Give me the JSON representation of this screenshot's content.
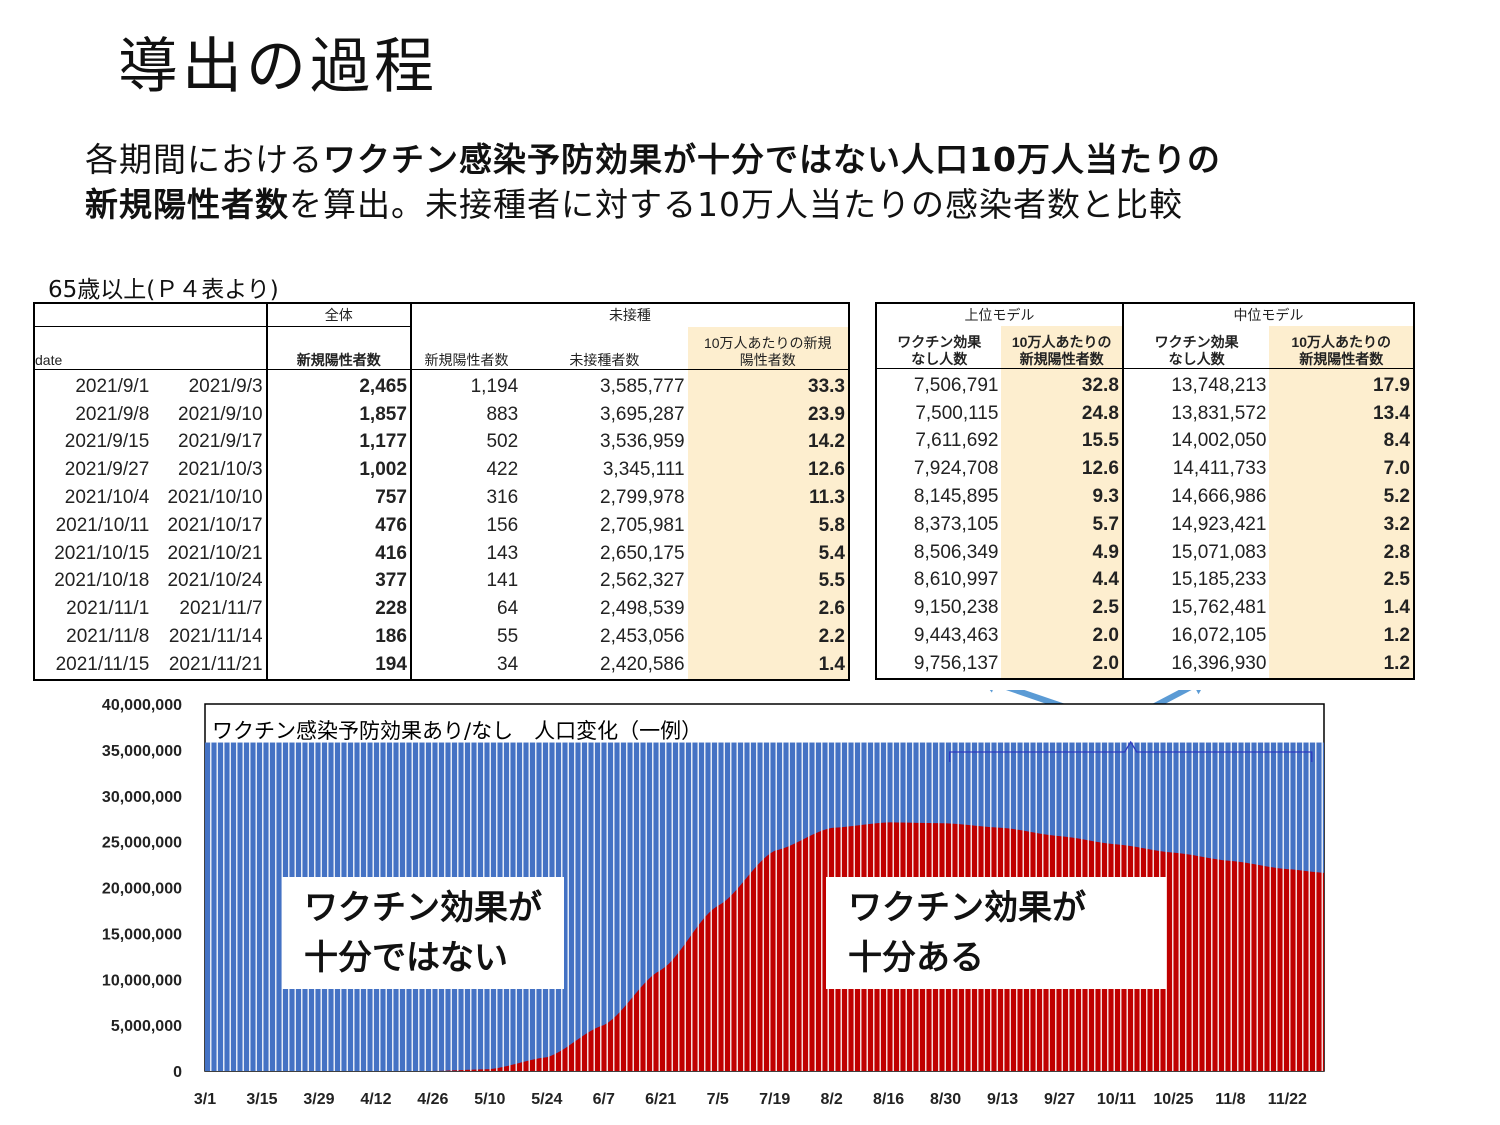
{
  "title": "導出の過程",
  "intro": {
    "line1_normal": "各期間における",
    "line1_bold": "ワクチン感染予防効果が十分ではない人口10万人当たりの",
    "line2_bold": "新規陽性者数",
    "line2_normal": "を算出。未接種者に対する10万人当たりの感染者数と比較"
  },
  "table_caption": "65歳以上(Ｐ４表より)",
  "left_table": {
    "group_headers": {
      "all": "全体",
      "unvaccinated": "未接種"
    },
    "col_headers": {
      "date": "date",
      "new_positive": "新規陽性者数",
      "unvac_new_positive": "新規陽性者数",
      "unvac_count": "未接種者数",
      "per100k_line1": "10万人あたりの新規",
      "per100k_line2": "陽性者数"
    },
    "rows": [
      {
        "start": "2021/9/1",
        "end": "2021/9/3",
        "total": "2,465",
        "unvac_pos": "1,194",
        "unvac_n": "3,585,777",
        "per100k": "33.3"
      },
      {
        "start": "2021/9/8",
        "end": "2021/9/10",
        "total": "1,857",
        "unvac_pos": "883",
        "unvac_n": "3,695,287",
        "per100k": "23.9"
      },
      {
        "start": "2021/9/15",
        "end": "2021/9/17",
        "total": "1,177",
        "unvac_pos": "502",
        "unvac_n": "3,536,959",
        "per100k": "14.2"
      },
      {
        "start": "2021/9/27",
        "end": "2021/10/3",
        "total": "1,002",
        "unvac_pos": "422",
        "unvac_n": "3,345,111",
        "per100k": "12.6"
      },
      {
        "start": "2021/10/4",
        "end": "2021/10/10",
        "total": "757",
        "unvac_pos": "316",
        "unvac_n": "2,799,978",
        "per100k": "11.3"
      },
      {
        "start": "2021/10/11",
        "end": "2021/10/17",
        "total": "476",
        "unvac_pos": "156",
        "unvac_n": "2,705,981",
        "per100k": "5.8"
      },
      {
        "start": "2021/10/15",
        "end": "2021/10/21",
        "total": "416",
        "unvac_pos": "143",
        "unvac_n": "2,650,175",
        "per100k": "5.4"
      },
      {
        "start": "2021/10/18",
        "end": "2021/10/24",
        "total": "377",
        "unvac_pos": "141",
        "unvac_n": "2,562,327",
        "per100k": "5.5"
      },
      {
        "start": "2021/11/1",
        "end": "2021/11/7",
        "total": "228",
        "unvac_pos": "64",
        "unvac_n": "2,498,539",
        "per100k": "2.6"
      },
      {
        "start": "2021/11/8",
        "end": "2021/11/14",
        "total": "186",
        "unvac_pos": "55",
        "unvac_n": "2,453,056",
        "per100k": "2.2"
      },
      {
        "start": "2021/11/15",
        "end": "2021/11/21",
        "total": "194",
        "unvac_pos": "34",
        "unvac_n": "2,420,586",
        "per100k": "1.4"
      }
    ]
  },
  "right_table": {
    "group_headers": {
      "upper": "上位モデル",
      "middle": "中位モデル"
    },
    "col_headers": {
      "no_effect_line1": "ワクチン効果",
      "no_effect_line2": "なし人数",
      "per100k_line1": "10万人あたりの",
      "per100k_line2": "新規陽性者数"
    },
    "rows": [
      {
        "up_n": "7,506,791",
        "up_r": "32.8",
        "mid_n": "13,748,213",
        "mid_r": "17.9"
      },
      {
        "up_n": "7,500,115",
        "up_r": "24.8",
        "mid_n": "13,831,572",
        "mid_r": "13.4"
      },
      {
        "up_n": "7,611,692",
        "up_r": "15.5",
        "mid_n": "14,002,050",
        "mid_r": "8.4"
      },
      {
        "up_n": "7,924,708",
        "up_r": "12.6",
        "mid_n": "14,411,733",
        "mid_r": "7.0"
      },
      {
        "up_n": "8,145,895",
        "up_r": "9.3",
        "mid_n": "14,666,986",
        "mid_r": "5.2"
      },
      {
        "up_n": "8,373,105",
        "up_r": "5.7",
        "mid_n": "14,923,421",
        "mid_r": "3.2"
      },
      {
        "up_n": "8,506,349",
        "up_r": "4.9",
        "mid_n": "15,071,083",
        "mid_r": "2.8"
      },
      {
        "up_n": "8,610,997",
        "up_r": "4.4",
        "mid_n": "15,185,233",
        "mid_r": "2.5"
      },
      {
        "up_n": "9,150,238",
        "up_r": "2.5",
        "mid_n": "15,762,481",
        "mid_r": "1.4"
      },
      {
        "up_n": "9,443,463",
        "up_r": "2.0",
        "mid_n": "16,072,105",
        "mid_r": "1.2"
      },
      {
        "up_n": "9,756,137",
        "up_r": "2.0",
        "mid_n": "16,396,930",
        "mid_r": "1.2"
      }
    ]
  },
  "chart_data": {
    "type": "area",
    "title": "ワクチン感染予防効果あり/なし　人口変化（一例）",
    "ylim": [
      0,
      40000000
    ],
    "yticks": [
      "0",
      "5,000,000",
      "10,000,000",
      "15,000,000",
      "20,000,000",
      "25,000,000",
      "30,000,000",
      "35,000,000",
      "40,000,000"
    ],
    "yticks_values": [
      0,
      5000000,
      10000000,
      15000000,
      20000000,
      25000000,
      30000000,
      35000000,
      40000000
    ],
    "xticks": [
      "3/1",
      "3/15",
      "3/29",
      "4/12",
      "4/26",
      "5/10",
      "5/24",
      "6/7",
      "6/21",
      "7/5",
      "7/19",
      "8/2",
      "8/16",
      "8/30",
      "9/13",
      "9/27",
      "10/11",
      "10/25",
      "11/8",
      "11/22"
    ],
    "x_days_total": 275,
    "total_population": 35800000,
    "series": [
      {
        "color": "#c00000",
        "points_day_value": [
          [
            0,
            0
          ],
          [
            56,
            0
          ],
          [
            70,
            200000
          ],
          [
            84,
            1500000
          ],
          [
            98,
            5000000
          ],
          [
            112,
            11000000
          ],
          [
            126,
            18000000
          ],
          [
            140,
            24000000
          ],
          [
            154,
            26500000
          ],
          [
            168,
            27100000
          ],
          [
            182,
            27000000
          ],
          [
            196,
            26500000
          ],
          [
            210,
            25600000
          ],
          [
            224,
            24700000
          ],
          [
            238,
            23800000
          ],
          [
            252,
            22900000
          ],
          [
            266,
            22000000
          ],
          [
            275,
            21600000
          ]
        ]
      },
      {
        "color": "#4472c4",
        "points_day_value": [
          [
            0,
            35800000
          ],
          [
            275,
            35800000
          ]
        ]
      }
    ],
    "annotations": {
      "left_box_line1": "ワクチン効果が",
      "left_box_line2": "十分ではない",
      "right_box_line1": "ワクチン効果が",
      "right_box_line2": "十分ある"
    },
    "colors": {
      "arrow": "#5b9bd5",
      "brace": "#2f3bc0"
    }
  }
}
